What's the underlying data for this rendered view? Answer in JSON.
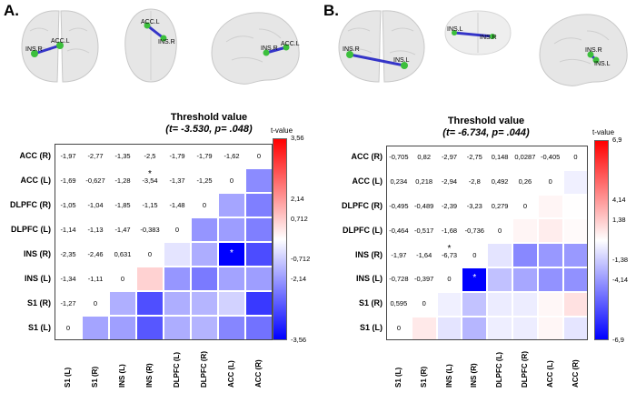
{
  "panels": [
    {
      "label": "A.",
      "title": "Threshold value",
      "subtitle": "(t= -3.530, p= .048)",
      "colorbar": {
        "title": "t-value",
        "ticks": [
          "3,56",
          "2,14",
          "0,712",
          "-0,712",
          "-2,14",
          "-3,56"
        ],
        "min": -3.56,
        "max": 3.56
      },
      "brain_views": [
        {
          "nodes": [
            "INS.R",
            "ACC.L"
          ]
        },
        {
          "nodes": [
            "ACC.L",
            "INS.R"
          ]
        },
        {
          "nodes": [
            "INS.R",
            "ACC.L"
          ]
        }
      ],
      "rows": [
        "ACC (R)",
        "ACC (L)",
        "DLPFC (R)",
        "DLPFC (L)",
        "INS (R)",
        "INS (L)",
        "S1 (R)",
        "S1 (L)"
      ],
      "cols": [
        "S1 (L)",
        "S1 (R)",
        "INS (L)",
        "INS (R)",
        "DLPFC (L)",
        "DLPFC (R)",
        "ACC (L)",
        "ACC (R)"
      ],
      "values": [
        [
          "-1,97",
          "-2,77",
          "-1,35",
          "-2,5",
          "-1,79",
          "-1,79",
          "-1,62",
          "0"
        ],
        [
          "-1,69",
          "-0,627",
          "-1,28",
          "-3,54",
          "-1,37",
          "-1,25",
          "0",
          null
        ],
        [
          "-1,05",
          "-1,04",
          "-1,85",
          "-1,15",
          "-1,48",
          "0",
          null,
          null
        ],
        [
          "-1,14",
          "-1,13",
          "-1,47",
          "-0,383",
          "0",
          null,
          null,
          null
        ],
        [
          "-2,35",
          "-2,46",
          "0,631",
          "0",
          null,
          null,
          null,
          null
        ],
        [
          "-1,34",
          "-1,11",
          "0",
          null,
          null,
          null,
          null,
          null
        ],
        [
          "-1,27",
          "0",
          null,
          null,
          null,
          null,
          null,
          null
        ],
        [
          "0",
          null,
          null,
          null,
          null,
          null,
          null,
          null
        ]
      ],
      "stars": [
        "*"
      ]
    },
    {
      "label": "B.",
      "title": "Threshold value",
      "subtitle": "(t= -6.734, p= .044)",
      "colorbar": {
        "title": "t-value",
        "ticks": [
          "6,9",
          "4,14",
          "1,38",
          "-1,38",
          "-4,14",
          "-6,9"
        ],
        "min": -6.9,
        "max": 6.9
      },
      "brain_views": [
        {
          "nodes": [
            "INS.R",
            "INS.L"
          ]
        },
        {
          "nodes": [
            "INS.L",
            "INS.R"
          ]
        },
        {
          "nodes": [
            "INS.R",
            "INS.L"
          ]
        }
      ],
      "rows": [
        "ACC (R)",
        "ACC (L)",
        "DLPFC (R)",
        "DLPFC (L)",
        "INS (R)",
        "INS (L)",
        "S1 (R)",
        "S1 (L)"
      ],
      "cols": [
        "S1 (L)",
        "S1 (R)",
        "INS (L)",
        "INS (R)",
        "DLPFC (L)",
        "DLPFC (R)",
        "ACC (L)",
        "ACC (R)"
      ],
      "values": [
        [
          "-0,705",
          "0,82",
          "-2,97",
          "-2,75",
          "0,148",
          "0,0287",
          "-0,405",
          "0"
        ],
        [
          "0,234",
          "0,218",
          "-2,94",
          "-2,8",
          "0,492",
          "0,26",
          "0",
          null
        ],
        [
          "-0,495",
          "-0,489",
          "-2,39",
          "-3,23",
          "0,279",
          "0",
          null,
          null
        ],
        [
          "-0,464",
          "-0,517",
          "-1,68",
          "-0,736",
          "0",
          null,
          null,
          null
        ],
        [
          "-1,97",
          "-1,64",
          "-6,73",
          "0",
          null,
          null,
          null,
          null
        ],
        [
          "-0,728",
          "-0,397",
          "0",
          null,
          null,
          null,
          null,
          null
        ],
        [
          "0,595",
          "0",
          null,
          null,
          null,
          null,
          null,
          null
        ],
        [
          "0",
          null,
          null,
          null,
          null,
          null,
          null,
          null
        ]
      ],
      "stars": [
        "*"
      ]
    }
  ]
}
